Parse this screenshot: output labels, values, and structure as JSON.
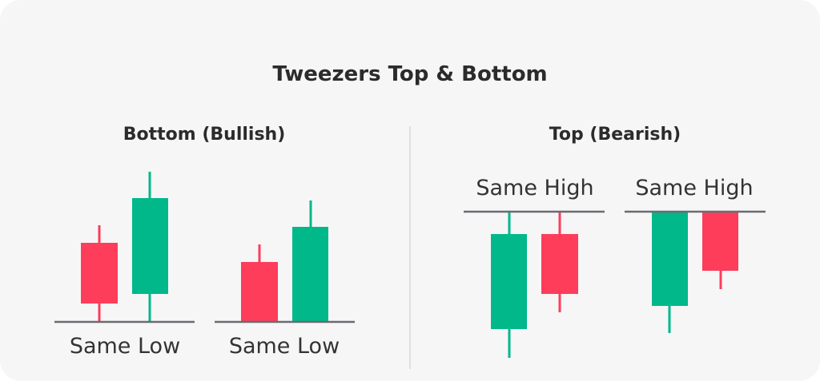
{
  "title": "Tweezers Top & Bottom",
  "bottom": {
    "heading": "Bottom (Bullish)",
    "labels": [
      "Same Low",
      "Same Low"
    ]
  },
  "top": {
    "heading": "Top (Bearish)",
    "labels": [
      "Same High",
      "Same High"
    ]
  },
  "colors": {
    "bullish": "#00b88a",
    "bearish": "#fd3d5a",
    "line": "#6b6b70",
    "background": "#f6f6f7"
  }
}
